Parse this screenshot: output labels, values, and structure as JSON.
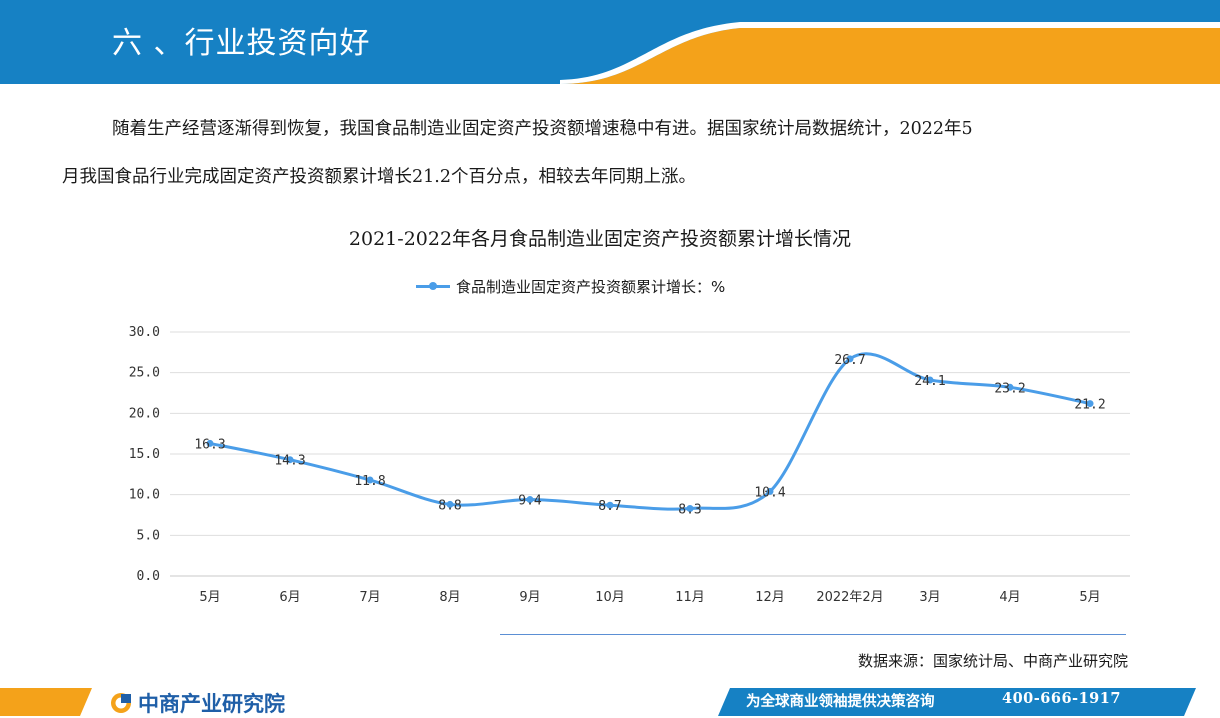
{
  "header": {
    "title": "六 、行业投资向好"
  },
  "body": {
    "paragraph_line1": "随着生产经营逐渐得到恢复，我国食品制造业固定资产投资额增速稳中有进。据国家统计局数据统计，2022年5",
    "paragraph_line2": "月我国食品行业完成固定资产投资额累计增长21.2个百分点，相较去年同期上涨。"
  },
  "colors": {
    "header_blue": "#1681c4",
    "header_orange": "#f4a21a",
    "series_blue": "#4a9de8",
    "brand_blue": "#1f5fa8"
  },
  "chart_data": {
    "type": "line",
    "title": "2021-2022年各月食品制造业固定资产投资额累计增长情况",
    "categories": [
      "5月",
      "6月",
      "7月",
      "8月",
      "9月",
      "10月",
      "11月",
      "12月",
      "2022年2月",
      "3月",
      "4月",
      "5月"
    ],
    "series": [
      {
        "name": "食品制造业固定资产投资额累计增长：%",
        "values": [
          16.3,
          14.3,
          11.8,
          8.8,
          9.4,
          8.7,
          8.3,
          10.4,
          26.7,
          24.1,
          23.2,
          21.2
        ],
        "labels": [
          "16.3",
          "14.3",
          "11.8",
          "8.8",
          "9.4",
          "8.7",
          "8.3",
          "10.4",
          "26.7",
          "24.1",
          "23.2",
          "21.2"
        ]
      }
    ],
    "ylim": [
      0,
      30
    ],
    "yticks": [
      "0.0",
      "5.0",
      "10.0",
      "15.0",
      "20.0",
      "25.0",
      "30.0"
    ],
    "grid": true,
    "legend_position": "top",
    "smooth": true
  },
  "source": "数据来源：国家统计局、中商产业研究院",
  "footer": {
    "brand": "中商产业研究院",
    "slogan": "为全球商业领袖提供决策咨询",
    "phone": "400-666-1917"
  }
}
